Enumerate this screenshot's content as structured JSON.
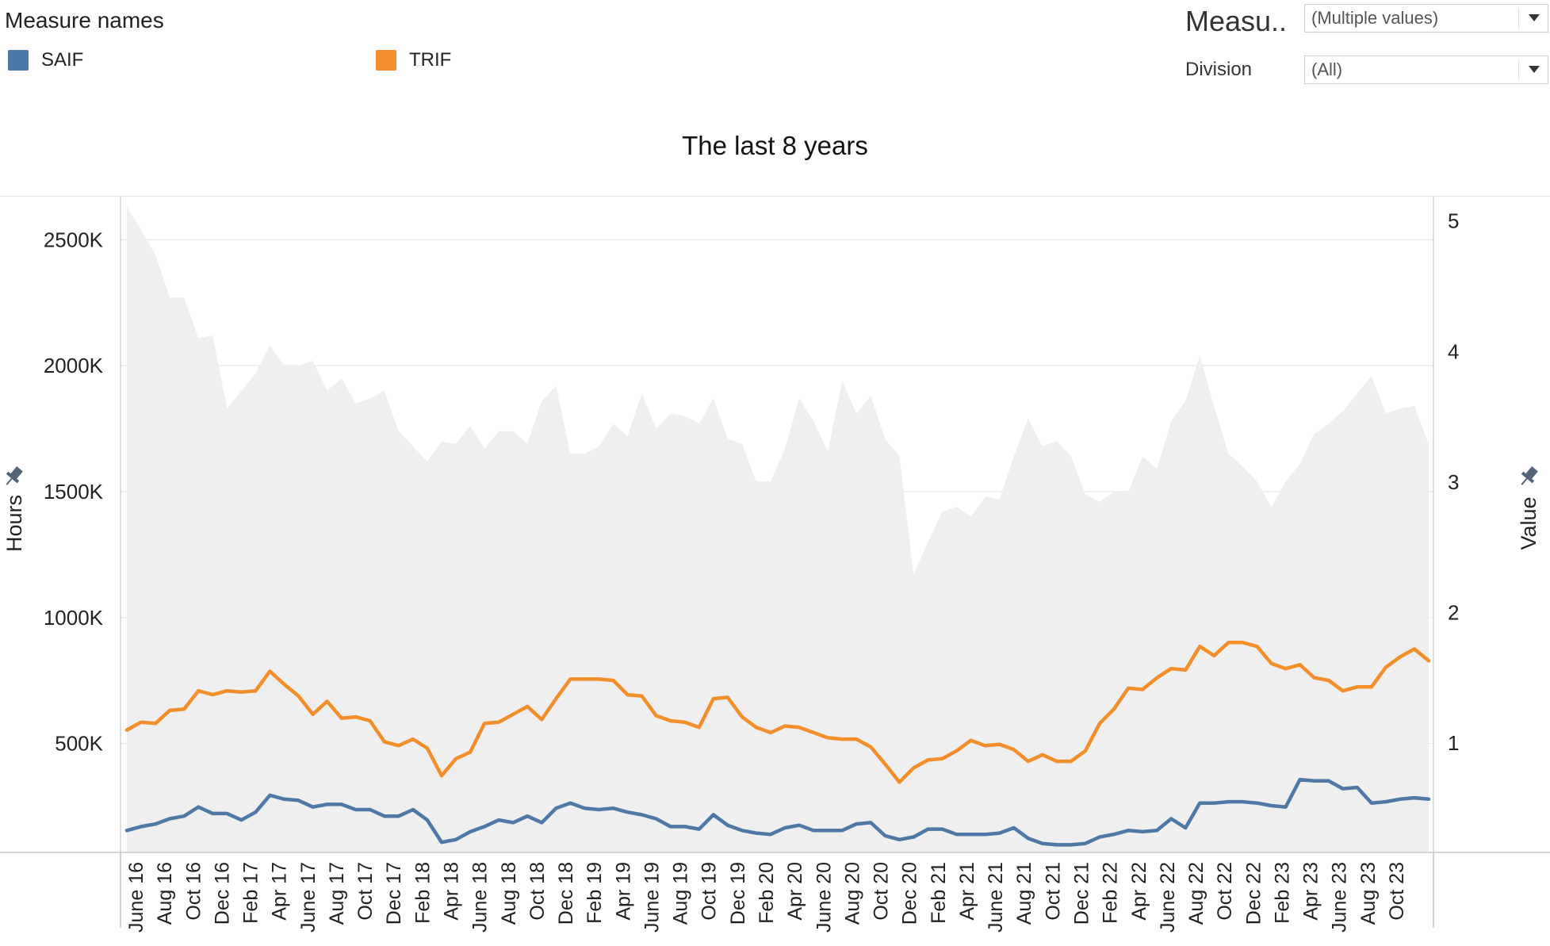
{
  "legend": {
    "title": "Measure names",
    "items": [
      {
        "label": "SAIF",
        "color": "#4e79a7"
      },
      {
        "label": "TRIF",
        "color": "#f28e2b"
      }
    ]
  },
  "filters": {
    "measure": {
      "label": "Measu..",
      "value": "(Multiple values)"
    },
    "division": {
      "label": "Division",
      "value": "(All)"
    }
  },
  "chart_data": {
    "type": "line",
    "title": "The last 8 years",
    "left_axis": {
      "label": "Hours",
      "ticks": [
        "500K",
        "1000K",
        "1500K",
        "2000K",
        "2500K"
      ],
      "values": [
        500,
        1000,
        1500,
        2000,
        2500
      ],
      "unit": "K"
    },
    "right_axis": {
      "label": "Value",
      "ticks": [
        "1",
        "2",
        "3",
        "4",
        "5"
      ],
      "values": [
        1,
        2,
        3,
        4,
        5
      ]
    },
    "x_tick_labels": [
      "June 16",
      "Aug 16",
      "Oct 16",
      "Dec 16",
      "Feb 17",
      "Apr 17",
      "June 17",
      "Aug 17",
      "Oct 17",
      "Dec 17",
      "Feb 18",
      "Apr 18",
      "June 18",
      "Aug 18",
      "Oct 18",
      "Dec 18",
      "Feb 19",
      "Apr 19",
      "June 19",
      "Aug 19",
      "Oct 19",
      "Dec 19",
      "Feb 20",
      "Apr 20",
      "June 20",
      "Aug 20",
      "Oct 20",
      "Dec 20",
      "Feb 21",
      "Apr 21",
      "June 21",
      "Aug 21",
      "Oct 21",
      "Dec 21",
      "Feb 22",
      "Apr 22",
      "June 22",
      "Aug 22",
      "Oct 22",
      "Dec 22",
      "Feb 23",
      "Apr 23",
      "June 23",
      "Aug 23",
      "Oct 23"
    ],
    "months_count": 92,
    "grid": true,
    "series": [
      {
        "axis": "left",
        "type": "area",
        "color": "#efefef",
        "values": [
          2630,
          2540,
          2440,
          2270,
          2270,
          2110,
          2120,
          1830,
          1900,
          1970,
          2080,
          2000,
          2000,
          2020,
          1900,
          1950,
          1850,
          1870,
          1900,
          1740,
          1680,
          1620,
          1700,
          1690,
          1760,
          1670,
          1740,
          1740,
          1690,
          1860,
          1920,
          1650,
          1650,
          1680,
          1770,
          1720,
          1890,
          1750,
          1810,
          1800,
          1770,
          1870,
          1710,
          1690,
          1540,
          1540,
          1670,
          1870,
          1780,
          1660,
          1940,
          1810,
          1880,
          1710,
          1640,
          1170,
          1300,
          1420,
          1440,
          1400,
          1480,
          1470,
          1640,
          1790,
          1680,
          1700,
          1640,
          1490,
          1460,
          1500,
          1500,
          1640,
          1590,
          1780,
          1860,
          2040,
          1840,
          1650,
          1600,
          1540,
          1440,
          1540,
          1610,
          1730,
          1770,
          1820,
          1890,
          1960,
          1810,
          1830,
          1840,
          1690
        ]
      },
      {
        "name": "TRIF",
        "axis": "right",
        "color": "#f28e2b",
        "values": [
          1.1,
          1.16,
          1.15,
          1.25,
          1.26,
          1.4,
          1.37,
          1.4,
          1.39,
          1.4,
          1.55,
          1.45,
          1.36,
          1.22,
          1.32,
          1.19,
          1.2,
          1.17,
          1.01,
          0.98,
          1.03,
          0.96,
          0.75,
          0.88,
          0.93,
          1.15,
          1.16,
          1.22,
          1.28,
          1.18,
          1.34,
          1.49,
          1.49,
          1.49,
          1.48,
          1.37,
          1.36,
          1.21,
          1.17,
          1.16,
          1.12,
          1.34,
          1.35,
          1.2,
          1.12,
          1.08,
          1.13,
          1.12,
          1.08,
          1.04,
          1.03,
          1.03,
          0.97,
          0.84,
          0.7,
          0.81,
          0.87,
          0.88,
          0.94,
          1.02,
          0.98,
          0.99,
          0.95,
          0.86,
          0.91,
          0.86,
          0.86,
          0.94,
          1.15,
          1.26,
          1.42,
          1.41,
          1.5,
          1.57,
          1.56,
          1.74,
          1.67,
          1.77,
          1.77,
          1.74,
          1.61,
          1.57,
          1.6,
          1.5,
          1.48,
          1.4,
          1.43,
          1.43,
          1.58,
          1.66,
          1.72,
          1.63
        ]
      },
      {
        "name": "SAIF",
        "axis": "right",
        "color": "#4e79a7",
        "values": [
          0.33,
          0.36,
          0.38,
          0.42,
          0.44,
          0.51,
          0.46,
          0.46,
          0.41,
          0.47,
          0.6,
          0.57,
          0.56,
          0.51,
          0.53,
          0.53,
          0.49,
          0.49,
          0.44,
          0.44,
          0.49,
          0.41,
          0.24,
          0.26,
          0.32,
          0.36,
          0.41,
          0.39,
          0.44,
          0.39,
          0.5,
          0.54,
          0.5,
          0.49,
          0.5,
          0.47,
          0.45,
          0.42,
          0.36,
          0.36,
          0.34,
          0.45,
          0.37,
          0.33,
          0.31,
          0.3,
          0.35,
          0.37,
          0.33,
          0.33,
          0.33,
          0.38,
          0.39,
          0.29,
          0.26,
          0.28,
          0.34,
          0.34,
          0.3,
          0.3,
          0.3,
          0.31,
          0.35,
          0.27,
          0.23,
          0.22,
          0.22,
          0.23,
          0.28,
          0.3,
          0.33,
          0.32,
          0.33,
          0.42,
          0.35,
          0.54,
          0.54,
          0.55,
          0.55,
          0.54,
          0.52,
          0.51,
          0.72,
          0.71,
          0.71,
          0.65,
          0.66,
          0.54,
          0.55,
          0.57,
          0.58,
          0.57
        ]
      }
    ]
  }
}
